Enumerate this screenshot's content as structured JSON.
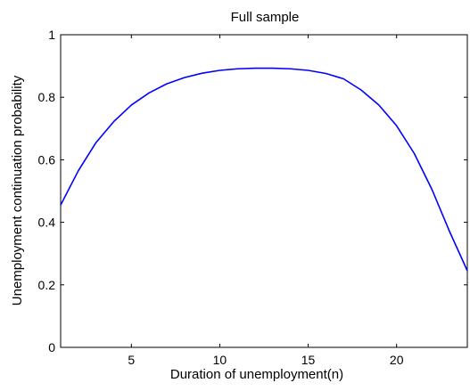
{
  "chart_data": {
    "type": "line",
    "title": "Full sample",
    "xlabel": "Duration of unemployment(n)",
    "ylabel": "Unemployment continuation probability",
    "xlim": [
      1,
      24
    ],
    "ylim": [
      0,
      1
    ],
    "xticks": [
      5,
      10,
      15,
      20
    ],
    "yticks": [
      0,
      0.2,
      0.4,
      0.6,
      0.8,
      1
    ],
    "ytick_labels": [
      "0",
      "0.2",
      "0.4",
      "0.6",
      "0.8",
      "1"
    ],
    "grid": false,
    "series": [
      {
        "color": "#0000ff",
        "x": [
          1,
          2,
          3,
          4,
          5,
          6,
          7,
          8,
          9,
          10,
          11,
          12,
          13,
          14,
          15,
          16,
          17,
          18,
          19,
          20,
          21,
          22,
          23,
          24
        ],
        "y": [
          0.455,
          0.565,
          0.655,
          0.722,
          0.775,
          0.814,
          0.843,
          0.863,
          0.877,
          0.886,
          0.891,
          0.893,
          0.893,
          0.891,
          0.886,
          0.876,
          0.859,
          0.823,
          0.775,
          0.709,
          0.62,
          0.505,
          0.37,
          0.245
        ]
      }
    ]
  }
}
